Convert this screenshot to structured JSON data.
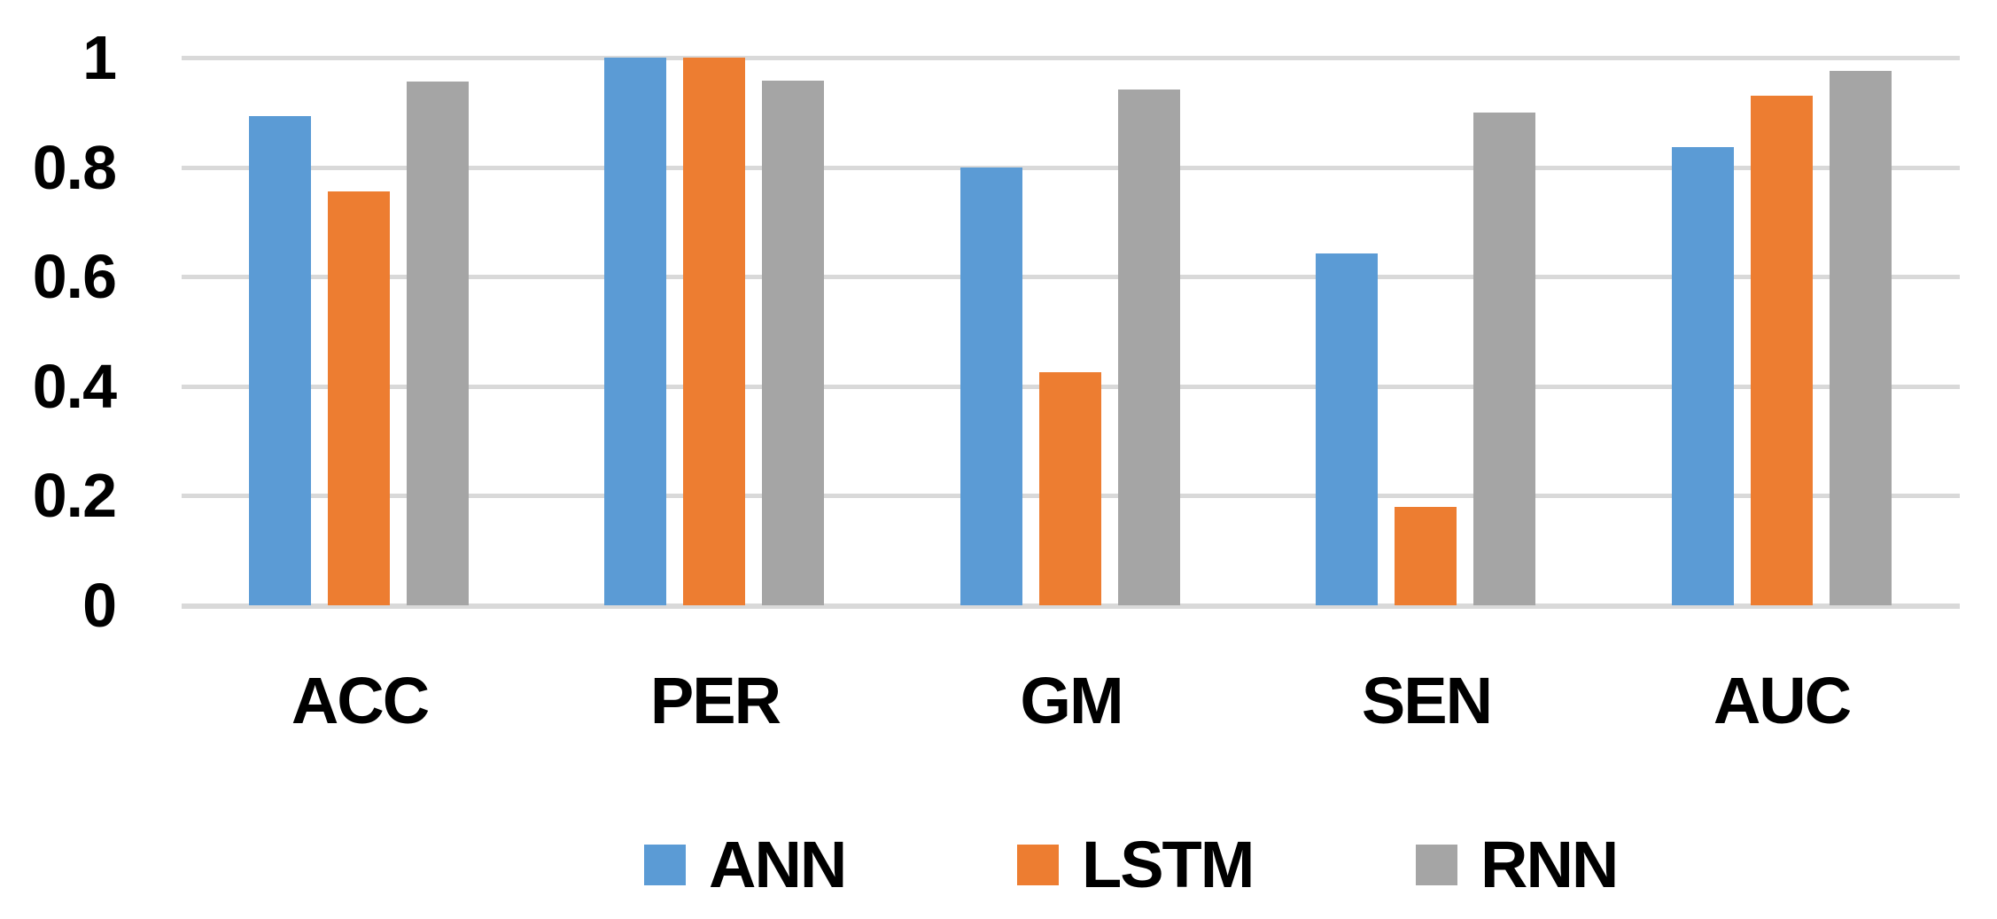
{
  "chart_data": {
    "type": "bar",
    "categories": [
      "ACC",
      "PER",
      "GM",
      "SEN",
      "AUC"
    ],
    "series": [
      {
        "name": "ANN",
        "color": "#5B9BD5",
        "values": [
          0.893,
          1.0,
          0.8,
          0.643,
          0.837
        ]
      },
      {
        "name": "LSTM",
        "color": "#ED7D31",
        "values": [
          0.755,
          1.0,
          0.426,
          0.18,
          0.93
        ]
      },
      {
        "name": "RNN",
        "color": "#A5A5A5",
        "values": [
          0.956,
          0.958,
          0.942,
          0.9,
          0.976
        ]
      }
    ],
    "title": "",
    "xlabel": "",
    "ylabel": "",
    "ylim": [
      0,
      1
    ],
    "yticks": [
      0,
      0.2,
      0.4,
      0.6,
      0.8,
      1
    ],
    "ytick_labels": [
      "0",
      "0.2",
      "0.4",
      "0.6",
      "0.8",
      "1"
    ],
    "grid": true,
    "legend_position": "bottom-center",
    "colors": {
      "gridline": "#D9D9D9",
      "axis_line": "#D9D9D9",
      "text": "#000000",
      "background": "#FFFFFF"
    }
  }
}
